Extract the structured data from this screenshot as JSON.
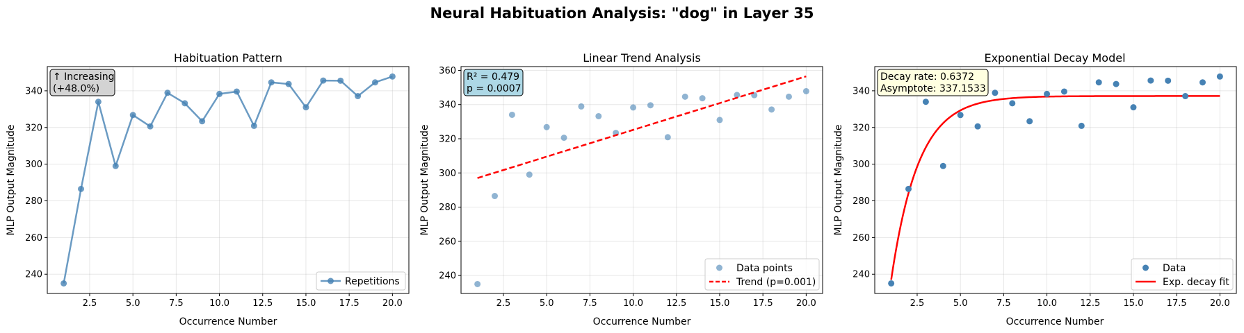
{
  "figure": {
    "title": "Neural Habituation Analysis: \"dog\" in Layer 35"
  },
  "chart_data": [
    {
      "type": "line",
      "title": "Habituation Pattern",
      "xlabel": "Occurrence Number",
      "ylabel": "MLP Output Magnitude",
      "xlim": [
        0.05,
        20.95
      ],
      "ylim": [
        229.5,
        353.2
      ],
      "xticks": [
        2.5,
        5.0,
        7.5,
        10.0,
        12.5,
        15.0,
        17.5,
        20.0
      ],
      "xtick_labels": [
        "2.5",
        "5.0",
        "7.5",
        "10.0",
        "12.5",
        "15.0",
        "17.5",
        "20.0"
      ],
      "yticks": [
        240,
        260,
        280,
        300,
        320,
        340
      ],
      "ytick_labels": [
        "240",
        "260",
        "280",
        "300",
        "320",
        "340"
      ],
      "grid": true,
      "legend_position": "lower-right",
      "series": [
        {
          "name": "Repetitions",
          "color": "#4682b4",
          "x": [
            1,
            2,
            3,
            4,
            5,
            6,
            7,
            8,
            9,
            10,
            11,
            12,
            13,
            14,
            15,
            16,
            17,
            18,
            19,
            20
          ],
          "y": [
            235.0,
            286.5,
            334.0,
            299.0,
            326.8,
            320.6,
            338.9,
            333.2,
            323.4,
            338.3,
            339.6,
            320.9,
            344.6,
            343.7,
            331.0,
            345.6,
            345.5,
            337.1,
            344.6,
            347.8
          ]
        }
      ],
      "annotation": {
        "lines": [
          "↑ Increasing",
          "(+48.0%)"
        ],
        "background": "#d3d3d3"
      }
    },
    {
      "type": "scatter",
      "title": "Linear Trend Analysis",
      "xlabel": "Occurrence Number",
      "ylabel": "MLP Output Magnitude",
      "xlim": [
        0.05,
        20.95
      ],
      "ylim": [
        229.5,
        362.2
      ],
      "xticks": [
        2.5,
        5.0,
        7.5,
        10.0,
        12.5,
        15.0,
        17.5,
        20.0
      ],
      "xtick_labels": [
        "2.5",
        "5.0",
        "7.5",
        "10.0",
        "12.5",
        "15.0",
        "17.5",
        "20.0"
      ],
      "yticks": [
        240,
        260,
        280,
        300,
        320,
        340,
        360
      ],
      "ytick_labels": [
        "240",
        "260",
        "280",
        "300",
        "320",
        "340",
        "360"
      ],
      "grid": true,
      "legend_position": "lower-right",
      "series": [
        {
          "name": "Data points",
          "color": "#4682b4",
          "x": [
            1,
            2,
            3,
            4,
            5,
            6,
            7,
            8,
            9,
            10,
            11,
            12,
            13,
            14,
            15,
            16,
            17,
            18,
            19,
            20
          ],
          "y": [
            235.0,
            286.5,
            334.0,
            299.0,
            326.8,
            320.6,
            338.9,
            333.2,
            323.4,
            338.3,
            339.6,
            320.9,
            344.6,
            343.7,
            331.0,
            345.6,
            345.5,
            337.1,
            344.6,
            347.8
          ]
        },
        {
          "name": "Trend (p=0.001)",
          "color": "#ff0000",
          "x": [
            1,
            20
          ],
          "y": [
            297.0,
            356.5
          ]
        }
      ],
      "annotation": {
        "lines": [
          "R² = 0.479",
          "p = 0.0007"
        ],
        "background": "#add8e6"
      }
    },
    {
      "type": "scatter",
      "title": "Exponential Decay Model",
      "xlabel": "Occurrence Number",
      "ylabel": "MLP Output Magnitude",
      "xlim": [
        0.05,
        20.95
      ],
      "ylim": [
        229.5,
        353.2
      ],
      "xticks": [
        2.5,
        5.0,
        7.5,
        10.0,
        12.5,
        15.0,
        17.5,
        20.0
      ],
      "xtick_labels": [
        "2.5",
        "5.0",
        "7.5",
        "10.0",
        "12.5",
        "15.0",
        "17.5",
        "20.0"
      ],
      "yticks": [
        240,
        260,
        280,
        300,
        320,
        340
      ],
      "ytick_labels": [
        "240",
        "260",
        "280",
        "300",
        "320",
        "340"
      ],
      "grid": true,
      "legend_position": "lower-right",
      "series": [
        {
          "name": "Data",
          "color": "#4682b4",
          "x": [
            1,
            2,
            3,
            4,
            5,
            6,
            7,
            8,
            9,
            10,
            11,
            12,
            13,
            14,
            15,
            16,
            17,
            18,
            19,
            20
          ],
          "y": [
            235.0,
            286.5,
            334.0,
            299.0,
            326.8,
            320.6,
            338.9,
            333.2,
            323.4,
            338.3,
            339.6,
            320.9,
            344.6,
            343.7,
            331.0,
            345.6,
            345.5,
            337.1,
            344.6,
            347.8
          ]
        },
        {
          "name": "Exp. decay fit",
          "color": "#ff0000",
          "model": {
            "asymptote": 337.1533,
            "decay_rate": 0.6372,
            "start_x": 1,
            "start_y": 237.0,
            "end_x": 20
          }
        }
      ],
      "annotation": {
        "lines": [
          "Decay rate: 0.6372",
          "Asymptote: 337.1533"
        ],
        "background": "#ffffe0"
      }
    }
  ]
}
